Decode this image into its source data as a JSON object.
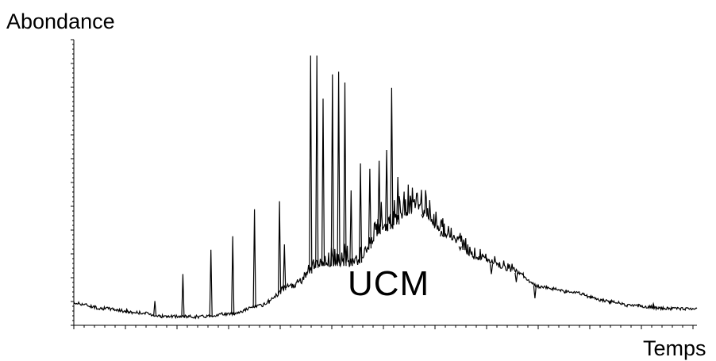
{
  "chart_data": {
    "type": "line",
    "title": "",
    "ylabel": "Abondance",
    "xlabel": "Temps",
    "annotations": [
      "UCM"
    ],
    "grid": false,
    "legend": "none",
    "line_color": "#000000",
    "xlim": [
      0,
      100
    ],
    "ylim": [
      0,
      100
    ],
    "baseline": {
      "x": [
        0,
        5,
        10,
        15,
        20,
        25,
        30,
        35,
        40,
        45,
        50,
        55,
        60,
        65,
        70,
        75,
        80,
        85,
        90,
        95,
        100
      ],
      "y": [
        8,
        6,
        4.5,
        3,
        3,
        4,
        7,
        14,
        22,
        22,
        35,
        42,
        32,
        24,
        20,
        14,
        12,
        9,
        7,
        6,
        6
      ]
    },
    "peaks": {
      "x": [
        8.5,
        13,
        17.5,
        22,
        25.5,
        29,
        33,
        33.8,
        38,
        39,
        40,
        41.5,
        42.5,
        43.5,
        44.5,
        46,
        47.5,
        49,
        50.2,
        51,
        52,
        54,
        56,
        59,
        62,
        67,
        71,
        74,
        79,
        83,
        86,
        93
      ],
      "y": [
        6,
        9,
        19,
        28,
        33,
        43,
        46,
        30,
        100,
        100,
        84,
        93,
        94,
        90,
        50,
        60,
        58,
        61,
        65,
        88,
        55,
        48,
        40,
        35,
        28,
        19,
        16,
        10,
        13,
        11,
        8,
        8
      ]
    }
  }
}
